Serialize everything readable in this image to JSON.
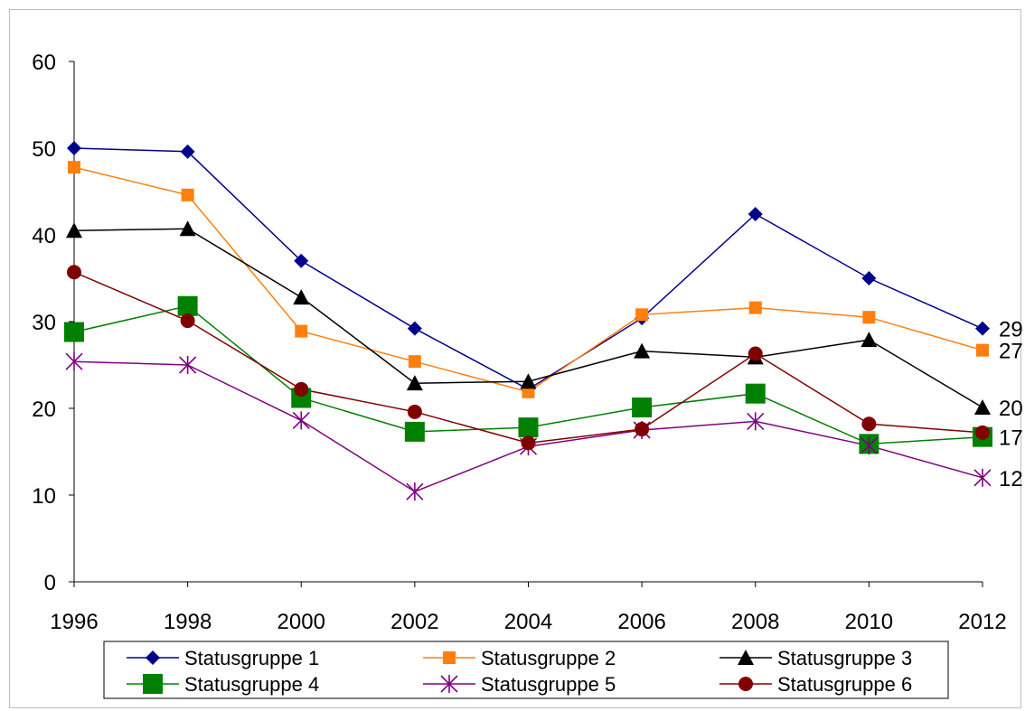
{
  "chart_data": {
    "type": "line",
    "title": "",
    "xlabel": "",
    "ylabel": "",
    "x": [
      1996,
      1998,
      2000,
      2002,
      2004,
      2006,
      2008,
      2010,
      2012
    ],
    "x_tick_labels": [
      "1996",
      "1998",
      "2000",
      "2002",
      "2004",
      "2006",
      "2008",
      "2010",
      "2012"
    ],
    "ylim": [
      0,
      60
    ],
    "y_ticks": [
      0,
      10,
      20,
      30,
      40,
      50,
      60
    ],
    "y_tick_labels": [
      "0",
      "10",
      "20",
      "30",
      "40",
      "50",
      "60"
    ],
    "grid": false,
    "legend_position": "bottom",
    "series": [
      {
        "name": "Statusgruppe 1",
        "color": "#00008b",
        "marker": "diamond",
        "values": [
          50.0,
          49.6,
          37.0,
          29.2,
          22.2,
          30.4,
          42.4,
          35.0,
          29.2
        ],
        "end_label": "29"
      },
      {
        "name": "Statusgruppe 2",
        "color": "#ff7f0e",
        "marker": "square",
        "values": [
          47.8,
          44.6,
          28.9,
          25.4,
          21.9,
          30.8,
          31.6,
          30.5,
          26.7
        ],
        "end_label": "27"
      },
      {
        "name": "Statusgruppe 3",
        "color": "#000000",
        "marker": "triangle",
        "values": [
          40.5,
          40.7,
          32.8,
          22.9,
          23.1,
          26.6,
          25.9,
          27.9,
          20.1
        ],
        "end_label": "20"
      },
      {
        "name": "Statusgruppe 4",
        "color": "#008000",
        "marker": "bigsquare",
        "values": [
          28.8,
          31.8,
          21.2,
          17.3,
          17.8,
          20.1,
          21.7,
          15.9,
          16.7
        ],
        "end_label": "17"
      },
      {
        "name": "Statusgruppe 5",
        "color": "#800080",
        "marker": "star",
        "values": [
          25.4,
          25.0,
          18.6,
          10.4,
          15.6,
          17.5,
          18.5,
          15.7,
          12.0
        ],
        "end_label": "12"
      },
      {
        "name": "Statusgruppe 6",
        "color": "#800000",
        "marker": "circle",
        "values": [
          35.7,
          30.1,
          22.2,
          19.6,
          16.0,
          17.6,
          26.3,
          18.2,
          17.2
        ],
        "end_label": ""
      }
    ]
  }
}
